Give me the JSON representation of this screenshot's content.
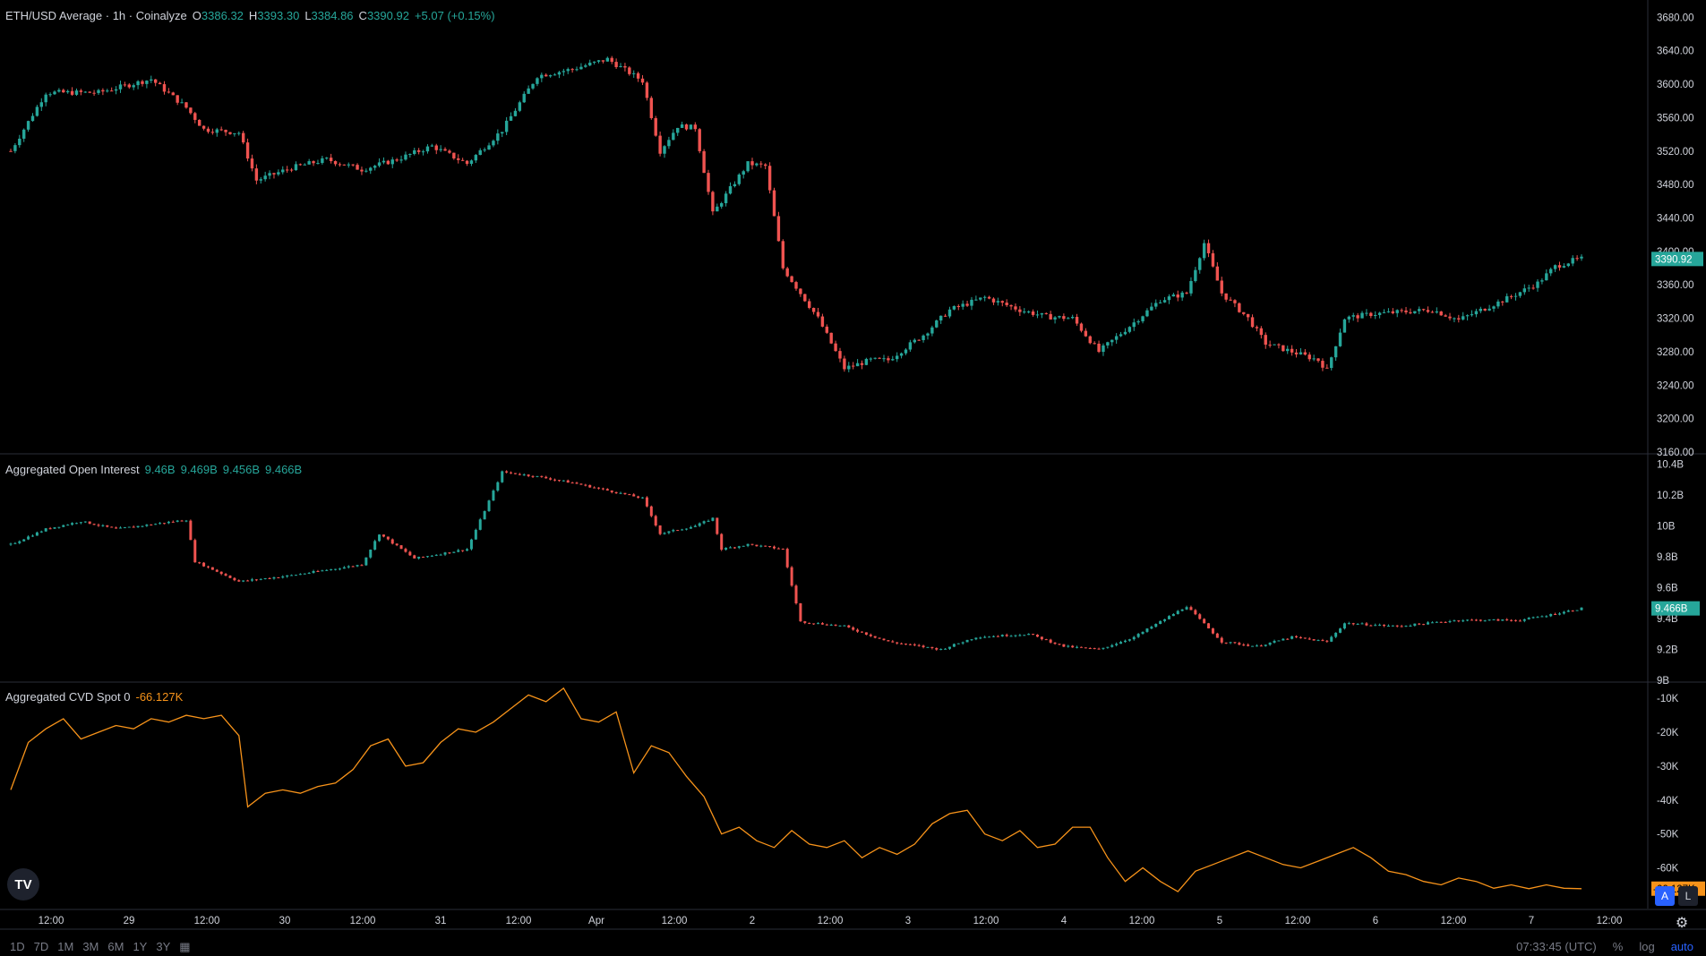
{
  "header": {
    "title": "ETH/USD Average · 1h · Coinalyze",
    "o_label": "O",
    "o": "3386.32",
    "h_label": "H",
    "h": "3393.30",
    "l_label": "L",
    "l": "3384.86",
    "c_label": "C",
    "c": "3390.92",
    "change": "+5.07 (+0.15%)"
  },
  "oi_legend": {
    "title": "Aggregated Open Interest",
    "values": [
      "9.46B",
      "9.469B",
      "9.456B",
      "9.466B"
    ]
  },
  "cvd_legend": {
    "title": "Aggregated CVD Spot 0",
    "value": "-66.127K"
  },
  "toolbar": {
    "ranges": [
      "1D",
      "7D",
      "1M",
      "3M",
      "6M",
      "1Y",
      "3Y"
    ],
    "time": "07:33:45 (UTC)",
    "percent": "%",
    "log": "log",
    "auto": "auto",
    "a_btn": "A",
    "l_btn": "L",
    "logo": "TV"
  },
  "colors": {
    "up": "#26a69a",
    "down": "#ef5350",
    "cvd": "#f7931a",
    "background": "#000000",
    "grid": "#2a2e39",
    "axis_text": "#d1d4dc"
  },
  "chart_data": [
    {
      "type": "candlestick",
      "title": "ETH/USD Average · 1h · Coinalyze",
      "ylim": [
        3160,
        3690
      ],
      "y_ticks": [
        "3680.00",
        "3640.00",
        "3600.00",
        "3560.00",
        "3520.00",
        "3480.00",
        "3440.00",
        "3400.00",
        "3360.00",
        "3320.00",
        "3280.00",
        "3240.00",
        "3200.00",
        "3160.00"
      ],
      "last_price_label": "3390.92",
      "close_path": [
        {
          "x": 0,
          "y": 3520
        },
        {
          "x": 8,
          "y": 3590
        },
        {
          "x": 20,
          "y": 3590
        },
        {
          "x": 32,
          "y": 3606
        },
        {
          "x": 40,
          "y": 3572
        },
        {
          "x": 44,
          "y": 3546
        },
        {
          "x": 52,
          "y": 3542
        },
        {
          "x": 56,
          "y": 3485
        },
        {
          "x": 64,
          "y": 3500
        },
        {
          "x": 72,
          "y": 3510
        },
        {
          "x": 80,
          "y": 3498
        },
        {
          "x": 88,
          "y": 3510
        },
        {
          "x": 96,
          "y": 3526
        },
        {
          "x": 104,
          "y": 3505
        },
        {
          "x": 112,
          "y": 3545
        },
        {
          "x": 120,
          "y": 3610
        },
        {
          "x": 128,
          "y": 3618
        },
        {
          "x": 136,
          "y": 3630
        },
        {
          "x": 144,
          "y": 3604
        },
        {
          "x": 148,
          "y": 3520
        },
        {
          "x": 152,
          "y": 3550
        },
        {
          "x": 156,
          "y": 3548
        },
        {
          "x": 160,
          "y": 3445
        },
        {
          "x": 168,
          "y": 3505
        },
        {
          "x": 172,
          "y": 3502
        },
        {
          "x": 176,
          "y": 3380
        },
        {
          "x": 184,
          "y": 3320
        },
        {
          "x": 190,
          "y": 3260
        },
        {
          "x": 196,
          "y": 3270
        },
        {
          "x": 200,
          "y": 3270
        },
        {
          "x": 208,
          "y": 3300
        },
        {
          "x": 214,
          "y": 3330
        },
        {
          "x": 222,
          "y": 3345
        },
        {
          "x": 230,
          "y": 3330
        },
        {
          "x": 236,
          "y": 3322
        },
        {
          "x": 242,
          "y": 3320
        },
        {
          "x": 248,
          "y": 3280
        },
        {
          "x": 256,
          "y": 3315
        },
        {
          "x": 262,
          "y": 3342
        },
        {
          "x": 268,
          "y": 3350
        },
        {
          "x": 272,
          "y": 3410
        },
        {
          "x": 276,
          "y": 3350
        },
        {
          "x": 282,
          "y": 3320
        },
        {
          "x": 286,
          "y": 3290
        },
        {
          "x": 292,
          "y": 3280
        },
        {
          "x": 298,
          "y": 3270
        },
        {
          "x": 300,
          "y": 3258
        },
        {
          "x": 304,
          "y": 3320
        },
        {
          "x": 310,
          "y": 3325
        },
        {
          "x": 318,
          "y": 3328
        },
        {
          "x": 324,
          "y": 3330
        },
        {
          "x": 330,
          "y": 3318
        },
        {
          "x": 336,
          "y": 3332
        },
        {
          "x": 342,
          "y": 3346
        },
        {
          "x": 348,
          "y": 3362
        },
        {
          "x": 352,
          "y": 3382
        },
        {
          "x": 356,
          "y": 3389
        },
        {
          "x": 358,
          "y": 3391
        }
      ],
      "x_tick_labels": [
        "12:00",
        "29",
        "12:00",
        "30",
        "12:00",
        "31",
        "12:00",
        "Apr",
        "12:00",
        "2",
        "12:00",
        "3",
        "12:00",
        "4",
        "12:00",
        "5",
        "12:00",
        "6",
        "12:00",
        "7",
        "12:00"
      ]
    },
    {
      "type": "candlestick",
      "title": "Aggregated Open Interest",
      "ylim": [
        9.0,
        10.45
      ],
      "y_ticks": [
        "10.4B",
        "10.2B",
        "10B",
        "9.8B",
        "9.6B",
        "9.4B",
        "9.2B",
        "9B"
      ],
      "last_value_label": "9.466B",
      "close_path": [
        {
          "x": 0,
          "y": 9.88
        },
        {
          "x": 8,
          "y": 9.98
        },
        {
          "x": 16,
          "y": 10.03
        },
        {
          "x": 24,
          "y": 9.98
        },
        {
          "x": 32,
          "y": 10.01
        },
        {
          "x": 40,
          "y": 10.04
        },
        {
          "x": 42,
          "y": 9.77
        },
        {
          "x": 52,
          "y": 9.64
        },
        {
          "x": 64,
          "y": 9.68
        },
        {
          "x": 80,
          "y": 9.75
        },
        {
          "x": 84,
          "y": 9.95
        },
        {
          "x": 92,
          "y": 9.79
        },
        {
          "x": 104,
          "y": 9.85
        },
        {
          "x": 112,
          "y": 10.35
        },
        {
          "x": 120,
          "y": 10.32
        },
        {
          "x": 128,
          "y": 10.28
        },
        {
          "x": 144,
          "y": 10.18
        },
        {
          "x": 148,
          "y": 9.95
        },
        {
          "x": 156,
          "y": 10.0
        },
        {
          "x": 160,
          "y": 10.05
        },
        {
          "x": 162,
          "y": 9.85
        },
        {
          "x": 168,
          "y": 9.88
        },
        {
          "x": 176,
          "y": 9.85
        },
        {
          "x": 180,
          "y": 9.38
        },
        {
          "x": 190,
          "y": 9.35
        },
        {
          "x": 200,
          "y": 9.25
        },
        {
          "x": 212,
          "y": 9.2
        },
        {
          "x": 220,
          "y": 9.28
        },
        {
          "x": 232,
          "y": 9.3
        },
        {
          "x": 240,
          "y": 9.22
        },
        {
          "x": 248,
          "y": 9.2
        },
        {
          "x": 256,
          "y": 9.28
        },
        {
          "x": 268,
          "y": 9.48
        },
        {
          "x": 276,
          "y": 9.25
        },
        {
          "x": 284,
          "y": 9.22
        },
        {
          "x": 292,
          "y": 9.28
        },
        {
          "x": 300,
          "y": 9.25
        },
        {
          "x": 304,
          "y": 9.37
        },
        {
          "x": 316,
          "y": 9.35
        },
        {
          "x": 330,
          "y": 9.39
        },
        {
          "x": 344,
          "y": 9.39
        },
        {
          "x": 350,
          "y": 9.42
        },
        {
          "x": 358,
          "y": 9.466
        }
      ]
    },
    {
      "type": "line",
      "title": "Aggregated CVD Spot 0",
      "ylim": [
        -72000,
        -6000
      ],
      "y_ticks": [
        "-10K",
        "-20K",
        "-30K",
        "-40K",
        "-50K",
        "-60K"
      ],
      "last_value_label": "-66.127K",
      "series": [
        {
          "x": [
            0,
            4,
            8,
            12,
            16,
            20,
            24,
            28,
            32,
            36,
            40,
            44,
            48,
            52,
            54,
            58,
            62,
            66,
            70,
            74,
            78,
            82,
            86,
            90,
            94,
            98,
            102,
            106,
            110,
            114,
            118,
            122,
            126,
            130,
            134,
            138,
            142,
            146,
            150,
            154,
            158,
            162,
            166,
            170,
            174,
            178,
            182,
            186,
            190,
            194,
            198,
            202,
            206,
            210,
            214,
            218,
            222,
            226,
            230,
            234,
            238,
            242,
            246,
            250,
            254,
            258,
            262,
            266,
            270,
            274,
            278,
            282,
            286,
            290,
            294,
            298,
            302,
            306,
            310,
            314,
            318,
            322,
            326,
            330,
            334,
            338,
            342,
            346,
            350,
            354,
            358
          ],
          "y": [
            -37000,
            -23000,
            -19000,
            -16000,
            -22000,
            -20000,
            -18000,
            -19000,
            -16000,
            -17000,
            -15000,
            -16000,
            -15000,
            -21000,
            -42000,
            -38000,
            -37000,
            -38000,
            -36000,
            -35000,
            -31000,
            -24000,
            -22000,
            -30000,
            -29000,
            -23000,
            -19000,
            -20000,
            -17000,
            -13000,
            -9000,
            -11000,
            -7000,
            -16000,
            -17000,
            -14000,
            -32000,
            -24000,
            -26000,
            -33000,
            -39000,
            -50000,
            -48000,
            -52000,
            -54000,
            -49000,
            -53000,
            -54000,
            -52000,
            -57000,
            -54000,
            -56000,
            -53000,
            -47000,
            -44000,
            -43000,
            -50000,
            -52000,
            -49000,
            -54000,
            -53000,
            -48000,
            -48000,
            -57000,
            -64000,
            -60000,
            -64000,
            -67000,
            -61000,
            -59000,
            -57000,
            -55000,
            -57000,
            -59000,
            -60000,
            -58000,
            -56000,
            -54000,
            -57000,
            -61000,
            -62000,
            -64000,
            -65000,
            -63000,
            -64000,
            -66000,
            -65000,
            -66127,
            -65000,
            -66000,
            -66127
          ]
        }
      ]
    }
  ]
}
